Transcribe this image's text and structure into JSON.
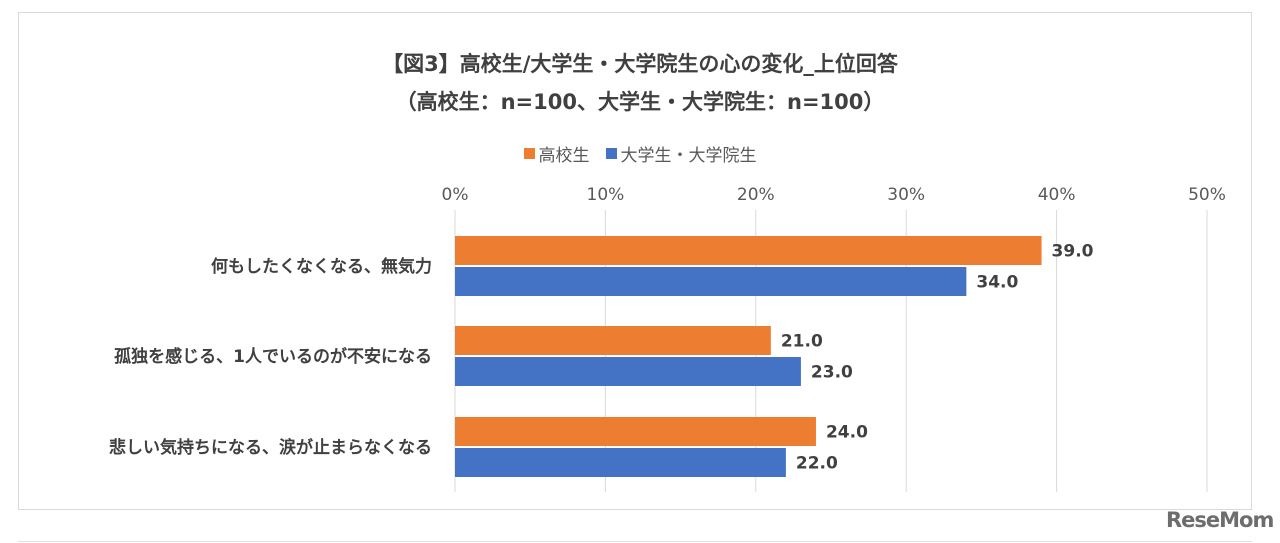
{
  "chart_data": {
    "type": "bar",
    "orientation": "horizontal",
    "title": "【図3】高校生/大学生・大学院生の心の変化_上位回答",
    "subtitle": "（高校生：n=100、大学生・大学院生：n=100）",
    "categories": [
      "何もしたくなくなる、無気力",
      "孤独を感じる、1人でいるのが不安になる",
      "悲しい気持ちになる、涙が止まらなくなる"
    ],
    "series": [
      {
        "name": "高校生",
        "color": "#ED7D31",
        "values": [
          39.0,
          21.0,
          24.0
        ]
      },
      {
        "name": "大学生・大学院生",
        "color": "#4472C4",
        "values": [
          34.0,
          23.0,
          22.0
        ]
      }
    ],
    "xlim": [
      0,
      50
    ],
    "ticks": [
      "0%",
      "10%",
      "20%",
      "30%",
      "40%",
      "50%"
    ],
    "tick_values": [
      0,
      10,
      20,
      30,
      40,
      50
    ],
    "grid": true,
    "legend_position": "top",
    "axis_position": "top"
  },
  "watermark": "ReseMom"
}
